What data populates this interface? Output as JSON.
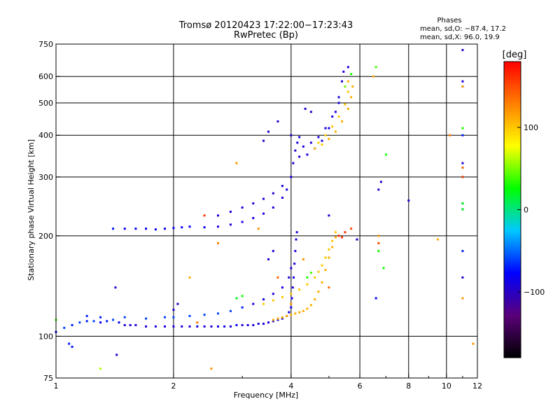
{
  "chart_data": {
    "type": "scatter",
    "title": "Tromsø 20120423 17:22:00−17:23:43",
    "subtitle": "RwPretec (Bp)",
    "xlabel": "Frequency [MHz]",
    "ylabel": "Stationary phase Virtual Height [km]",
    "xscale": "log",
    "yscale": "log",
    "xlim": [
      1,
      12
    ],
    "ylim": [
      75,
      750
    ],
    "grid": true,
    "x_ticks": [
      1,
      2,
      4,
      6,
      8,
      10,
      12
    ],
    "x_tick_labels": [
      "1",
      "2",
      "4",
      "6",
      "8",
      "10",
      "12"
    ],
    "y_ticks": [
      75,
      100,
      200,
      300,
      400,
      500,
      600,
      750
    ],
    "y_tick_labels": [
      "75",
      "100",
      "200",
      "300",
      "400",
      "500",
      "600",
      "750"
    ],
    "x_gridlines": [
      2,
      4,
      6,
      8,
      10,
      12
    ],
    "y_gridlines": [
      100,
      200,
      300,
      400,
      500,
      600
    ],
    "legend": {
      "title": "Phases",
      "line1": "mean, sd,O: −87.4, 17.2",
      "line2": "mean, sd,X:  96.0, 19.9"
    },
    "colorbar": {
      "label": "[deg]",
      "min": -180,
      "max": 180,
      "ticks": [
        100,
        0,
        -100
      ],
      "tick_labels": [
        "100",
        "0",
        "−100"
      ],
      "colormap": [
        "#000000",
        "#5a007a",
        "#0000ff",
        "#00c8ff",
        "#00ff00",
        "#ffff00",
        "#ff8000",
        "#ff0000"
      ]
    },
    "series": [
      {
        "points": [
          [
            1.0,
            103,
            -80
          ],
          [
            1.05,
            106,
            -60
          ],
          [
            1.1,
            108,
            -70
          ],
          [
            1.15,
            110,
            -60
          ],
          [
            1.2,
            111,
            -70
          ],
          [
            1.25,
            111,
            -60
          ],
          [
            1.3,
            110,
            -80
          ],
          [
            1.35,
            111,
            -70
          ],
          [
            1.4,
            112,
            -60
          ],
          [
            1.45,
            110,
            -80
          ],
          [
            1.5,
            108,
            -90
          ],
          [
            1.55,
            108,
            -90
          ],
          [
            1.6,
            108,
            -90
          ],
          [
            1.7,
            107,
            -90
          ],
          [
            1.8,
            107,
            -90
          ],
          [
            1.9,
            107,
            -90
          ],
          [
            2.0,
            107,
            -90
          ],
          [
            2.1,
            107,
            -90
          ],
          [
            2.2,
            107,
            -90
          ],
          [
            2.3,
            107,
            -90
          ],
          [
            2.4,
            107,
            -90
          ],
          [
            2.5,
            107,
            -90
          ],
          [
            2.6,
            107,
            -90
          ],
          [
            2.7,
            107,
            -90
          ],
          [
            2.8,
            107,
            -90
          ],
          [
            2.9,
            108,
            -80
          ],
          [
            3.0,
            108,
            -90
          ],
          [
            3.1,
            108,
            -90
          ],
          [
            3.2,
            108,
            -90
          ],
          [
            3.3,
            109,
            -90
          ],
          [
            3.4,
            109,
            -90
          ],
          [
            3.5,
            110,
            -90
          ],
          [
            3.6,
            111,
            -90
          ],
          [
            3.7,
            112,
            -90
          ],
          [
            3.8,
            113,
            -90
          ],
          [
            3.9,
            115,
            -90
          ],
          [
            3.95,
            118,
            -90
          ],
          [
            4.0,
            122,
            -90
          ],
          [
            4.02,
            130,
            -90
          ],
          [
            4.04,
            140,
            -90
          ],
          [
            4.06,
            150,
            -90
          ],
          [
            4.08,
            165,
            -90
          ],
          [
            4.1,
            180,
            -90
          ],
          [
            4.12,
            195,
            -90
          ],
          [
            4.14,
            205,
            -90
          ],
          [
            1.2,
            115,
            -70
          ],
          [
            1.3,
            114,
            -70
          ],
          [
            1.5,
            114,
            -60
          ],
          [
            1.7,
            113,
            -60
          ],
          [
            1.9,
            114,
            -60
          ],
          [
            2.0,
            114,
            -60
          ],
          [
            2.2,
            115,
            -60
          ],
          [
            2.4,
            116,
            -60
          ],
          [
            2.6,
            117,
            -60
          ],
          [
            2.8,
            119,
            -60
          ],
          [
            3.0,
            122,
            -70
          ],
          [
            3.2,
            125,
            -90
          ],
          [
            3.4,
            129,
            -90
          ],
          [
            3.6,
            134,
            -90
          ],
          [
            3.8,
            140,
            -90
          ],
          [
            3.95,
            150,
            -90
          ],
          [
            4.0,
            160,
            -90
          ],
          [
            1.4,
            210,
            -70
          ],
          [
            1.5,
            210,
            -80
          ],
          [
            1.6,
            210,
            -80
          ],
          [
            1.7,
            210,
            -80
          ],
          [
            1.8,
            209,
            -80
          ],
          [
            1.9,
            210,
            -80
          ],
          [
            2.0,
            211,
            -80
          ],
          [
            2.1,
            212,
            -80
          ],
          [
            2.2,
            213,
            -80
          ],
          [
            2.4,
            212,
            -80
          ],
          [
            2.6,
            213,
            -90
          ],
          [
            2.8,
            216,
            -90
          ],
          [
            3.0,
            220,
            -90
          ],
          [
            3.2,
            226,
            -90
          ],
          [
            3.4,
            233,
            -90
          ],
          [
            3.6,
            243,
            -90
          ],
          [
            3.8,
            260,
            -90
          ],
          [
            3.9,
            275,
            -90
          ],
          [
            4.0,
            300,
            -90
          ],
          [
            4.05,
            330,
            -90
          ],
          [
            4.1,
            360,
            -90
          ],
          [
            4.15,
            380,
            -90
          ],
          [
            4.2,
            395,
            -90
          ],
          [
            2.6,
            230,
            -90
          ],
          [
            2.8,
            236,
            -90
          ],
          [
            3.0,
            243,
            -90
          ],
          [
            3.2,
            250,
            -90
          ],
          [
            3.4,
            258,
            -90
          ],
          [
            3.6,
            268,
            -90
          ],
          [
            3.8,
            282,
            -90
          ],
          [
            4.2,
            345,
            -90
          ],
          [
            4.4,
            350,
            -90
          ],
          [
            4.6,
            365,
            -90
          ],
          [
            4.8,
            385,
            -90
          ],
          [
            5.0,
            420,
            -90
          ],
          [
            5.2,
            470,
            -90
          ],
          [
            5.3,
            520,
            -90
          ],
          [
            5.4,
            580,
            -90
          ],
          [
            5.45,
            620,
            -90
          ],
          [
            4.3,
            370,
            -90
          ],
          [
            4.5,
            380,
            -90
          ],
          [
            4.7,
            395,
            -90
          ],
          [
            4.9,
            420,
            -90
          ],
          [
            5.1,
            455,
            -90
          ],
          [
            5.3,
            500,
            -90
          ],
          [
            5.5,
            560,
            -90
          ],
          [
            5.6,
            640,
            -90
          ],
          [
            1.42,
            140,
            -95
          ],
          [
            1.43,
            88,
            -95
          ],
          [
            2.0,
            120,
            -95
          ],
          [
            2.05,
            125,
            -95
          ],
          [
            3.5,
            170,
            -95
          ],
          [
            3.6,
            180,
            -95
          ],
          [
            4.0,
            400,
            -95
          ],
          [
            6.6,
            130,
            -80
          ],
          [
            6.8,
            290,
            -95
          ],
          [
            6.7,
            275,
            -95
          ],
          [
            8.0,
            255,
            -95
          ],
          [
            11.0,
            720,
            -95
          ],
          [
            11.0,
            580,
            -95
          ],
          [
            11.0,
            560,
            -95
          ],
          [
            11.0,
            400,
            -70
          ],
          [
            11.0,
            330,
            -95
          ],
          [
            11.0,
            300,
            -95
          ],
          [
            11.0,
            250,
            -95
          ],
          [
            11.0,
            240,
            -95
          ],
          [
            11.0,
            180,
            -70
          ],
          [
            11.0,
            150,
            -95
          ],
          [
            1.08,
            95,
            -70
          ],
          [
            1.1,
            93,
            -70
          ],
          [
            5.0,
            230,
            -95
          ],
          [
            5.9,
            195,
            -95
          ],
          [
            4.35,
            480,
            -95
          ],
          [
            4.5,
            470,
            -95
          ],
          [
            3.5,
            410,
            -95
          ],
          [
            3.4,
            385,
            -95
          ],
          [
            3.7,
            440,
            -95
          ]
        ]
      },
      {
        "points": [
          [
            3.6,
            112,
            110
          ],
          [
            3.7,
            113,
            110
          ],
          [
            3.8,
            114,
            110
          ],
          [
            3.9,
            115,
            110
          ],
          [
            4.0,
            116,
            110
          ],
          [
            4.1,
            117,
            110
          ],
          [
            4.2,
            118,
            110
          ],
          [
            4.3,
            119,
            110
          ],
          [
            4.4,
            121,
            110
          ],
          [
            4.5,
            124,
            110
          ],
          [
            4.6,
            129,
            110
          ],
          [
            4.7,
            136,
            110
          ],
          [
            4.8,
            145,
            110
          ],
          [
            4.9,
            158,
            110
          ],
          [
            5.0,
            172,
            110
          ],
          [
            5.1,
            185,
            110
          ],
          [
            5.2,
            198,
            110
          ],
          [
            3.4,
            125,
            100
          ],
          [
            3.6,
            128,
            100
          ],
          [
            3.8,
            131,
            100
          ],
          [
            4.0,
            134,
            100
          ],
          [
            4.2,
            138,
            100
          ],
          [
            4.4,
            143,
            100
          ],
          [
            4.6,
            150,
            100
          ],
          [
            4.7,
            156,
            100
          ],
          [
            4.8,
            163,
            100
          ],
          [
            4.9,
            172,
            100
          ],
          [
            5.0,
            182,
            100
          ],
          [
            5.1,
            193,
            100
          ],
          [
            5.2,
            205,
            100
          ],
          [
            4.6,
            365,
            100
          ],
          [
            4.8,
            375,
            100
          ],
          [
            5.0,
            390,
            110
          ],
          [
            5.2,
            410,
            110
          ],
          [
            5.4,
            440,
            110
          ],
          [
            5.6,
            480,
            110
          ],
          [
            5.7,
            520,
            110
          ],
          [
            5.75,
            560,
            110
          ],
          [
            4.7,
            380,
            100
          ],
          [
            4.9,
            400,
            100
          ],
          [
            5.1,
            425,
            100
          ],
          [
            5.3,
            455,
            100
          ],
          [
            5.5,
            495,
            100
          ],
          [
            5.6,
            540,
            100
          ],
          [
            5.3,
            200,
            160
          ],
          [
            5.5,
            205,
            160
          ],
          [
            5.7,
            210,
            150
          ],
          [
            5.4,
            198,
            160
          ],
          [
            2.3,
            110,
            130
          ],
          [
            2.2,
            150,
            110
          ],
          [
            2.4,
            230,
            160
          ],
          [
            2.6,
            190,
            130
          ],
          [
            2.5,
            80,
            120
          ],
          [
            2.9,
            330,
            120
          ],
          [
            3.3,
            210,
            120
          ],
          [
            3.7,
            150,
            140
          ],
          [
            4.3,
            170,
            120
          ],
          [
            5.0,
            140,
            140
          ],
          [
            6.5,
            600,
            110
          ],
          [
            6.7,
            200,
            120
          ],
          [
            6.7,
            190,
            150
          ],
          [
            9.5,
            195,
            110
          ],
          [
            10.2,
            400,
            130
          ],
          [
            11.0,
            320,
            140
          ],
          [
            11.0,
            300,
            150
          ],
          [
            11.0,
            130,
            120
          ],
          [
            11.0,
            560,
            120
          ],
          [
            11.7,
            95,
            120
          ],
          [
            4.0,
            125,
            120
          ],
          [
            5.6,
            580,
            110
          ]
        ]
      },
      {
        "points": [
          [
            2.9,
            130,
            20
          ],
          [
            3.0,
            132,
            30
          ],
          [
            4.4,
            150,
            30
          ],
          [
            4.5,
            155,
            40
          ],
          [
            5.7,
            610,
            30
          ],
          [
            6.6,
            640,
            40
          ],
          [
            6.7,
            180,
            30
          ],
          [
            6.9,
            160,
            30
          ],
          [
            7.0,
            350,
            30
          ],
          [
            11.0,
            420,
            30
          ],
          [
            1.3,
            80,
            60
          ],
          [
            1.0,
            112,
            40
          ],
          [
            5.5,
            560,
            50
          ],
          [
            11.0,
            250,
            20
          ],
          [
            11.0,
            240,
            20
          ]
        ]
      }
    ]
  }
}
